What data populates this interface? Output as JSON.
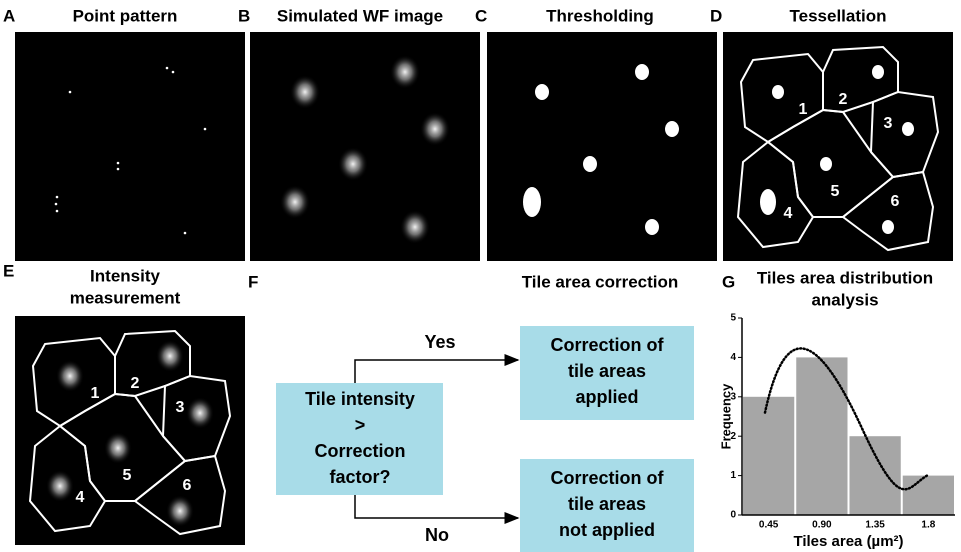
{
  "panels": [
    {
      "letter": "A",
      "title": [
        "Point pattern"
      ]
    },
    {
      "letter": "B",
      "title": [
        "Simulated WF image"
      ]
    },
    {
      "letter": "C",
      "title": [
        "Thresholding"
      ]
    },
    {
      "letter": "D",
      "title": [
        "Tessellation"
      ]
    },
    {
      "letter": "E",
      "title": [
        "Intensity",
        "measurement"
      ]
    },
    {
      "letter": "F",
      "title": [
        "Tile area correction"
      ]
    },
    {
      "letter": "G",
      "title": [
        "Tiles area distribution",
        "analysis"
      ]
    }
  ],
  "tiles_d": [
    "1",
    "2",
    "3",
    "4",
    "5",
    "6"
  ],
  "tiles_e": [
    "1",
    "2",
    "3",
    "4",
    "5",
    "6"
  ],
  "flow": {
    "decision": [
      "Tile intensity",
      ">",
      "Correction",
      "factor?"
    ],
    "yes": "Yes",
    "no": "No",
    "applied": [
      "Correction of",
      "tile areas",
      "applied"
    ],
    "not_applied": [
      "Correction of",
      "tile areas",
      "not applied"
    ]
  },
  "chart_data": {
    "type": "bar",
    "categories": [
      "0.45",
      {
        "value": 0.9,
        "label": "0.90"
      },
      "1.35",
      "1.8"
    ],
    "values": [
      3,
      4,
      2,
      1
    ],
    "color": "#a6a6a6",
    "x_label": "Tiles area (µm²)",
    "y_label": "Frequency",
    "ylim": [
      0,
      5
    ],
    "yticks": [
      0,
      1,
      2,
      3,
      4,
      5
    ]
  }
}
